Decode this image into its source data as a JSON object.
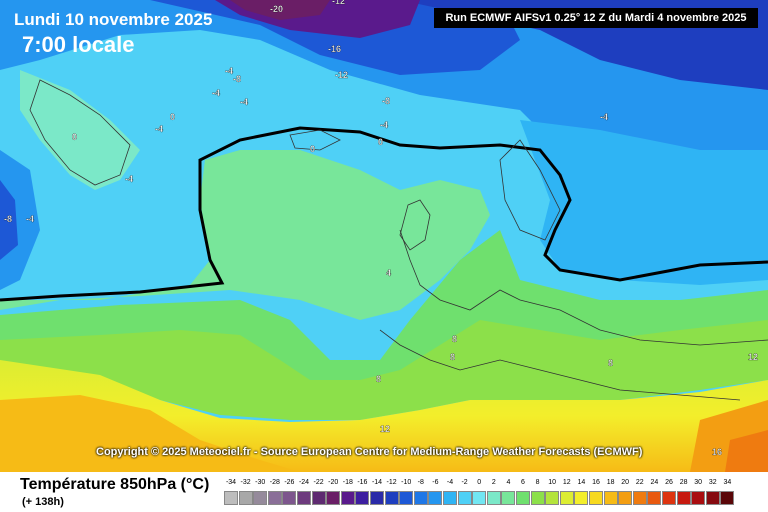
{
  "header": {
    "date": "Lundi 10 novembre 2025",
    "time": "7:00 locale",
    "run": "Run ECMWF AIFSv1 0.25° 12 Z du Mardi 4 novembre 2025"
  },
  "copyright": "Copyright © 2025 Meteociel.fr - Source European Centre for Medium-Range Weather Forecasts (ECMWF)",
  "footer": {
    "variable": "Température 850hPa (°C)",
    "lead": "(+ 138h)"
  },
  "legend": {
    "ticks": [
      "-34",
      "-32",
      "-30",
      "-28",
      "-26",
      "-24",
      "-22",
      "-20",
      "-18",
      "-16",
      "-14",
      "-12",
      "-10",
      "-8",
      "-6",
      "-4",
      "-2",
      "0",
      "2",
      "4",
      "6",
      "8",
      "10",
      "12",
      "14",
      "16",
      "18",
      "20",
      "22",
      "24",
      "26",
      "28",
      "30",
      "32",
      "34"
    ],
    "colors": [
      "#bdbdbd",
      "#a8a8a8",
      "#958a9b",
      "#8a6f98",
      "#7d568d",
      "#6e3b7e",
      "#5e2a70",
      "#6a1e66",
      "#5a1a8c",
      "#3d1ea0",
      "#2a2aa8",
      "#1e3ebf",
      "#1d58d6",
      "#1f77e6",
      "#2596ef",
      "#2fb4f4",
      "#4fd0f6",
      "#72e6f2",
      "#7be8c8",
      "#78e69a",
      "#6fe06e",
      "#8ce04a",
      "#b4e43c",
      "#dced32",
      "#f3ee2b",
      "#f7d91f",
      "#f6bb16",
      "#f39e12",
      "#ef7b10",
      "#e8590f",
      "#dd3410",
      "#c71a10",
      "#a90d10",
      "#860a10",
      "#5a0608"
    ]
  },
  "map_labels": [
    {
      "text": "-20"
    },
    {
      "text": "-16"
    },
    {
      "text": "-12"
    },
    {
      "text": "-8"
    },
    {
      "text": "-4"
    },
    {
      "text": "-4"
    },
    {
      "text": "-8"
    },
    {
      "text": "-4"
    },
    {
      "text": "-4"
    },
    {
      "text": "-4"
    },
    {
      "text": "0"
    },
    {
      "text": "0"
    },
    {
      "text": "-4"
    },
    {
      "text": "0"
    },
    {
      "text": "0"
    },
    {
      "text": "-4"
    },
    {
      "text": "-8"
    },
    {
      "text": "-4"
    },
    {
      "text": "4"
    },
    {
      "text": "8"
    },
    {
      "text": "8"
    },
    {
      "text": "8"
    },
    {
      "text": "8"
    },
    {
      "text": "12"
    },
    {
      "text": "12"
    },
    {
      "text": "16"
    },
    {
      "text": "-12"
    }
  ]
}
